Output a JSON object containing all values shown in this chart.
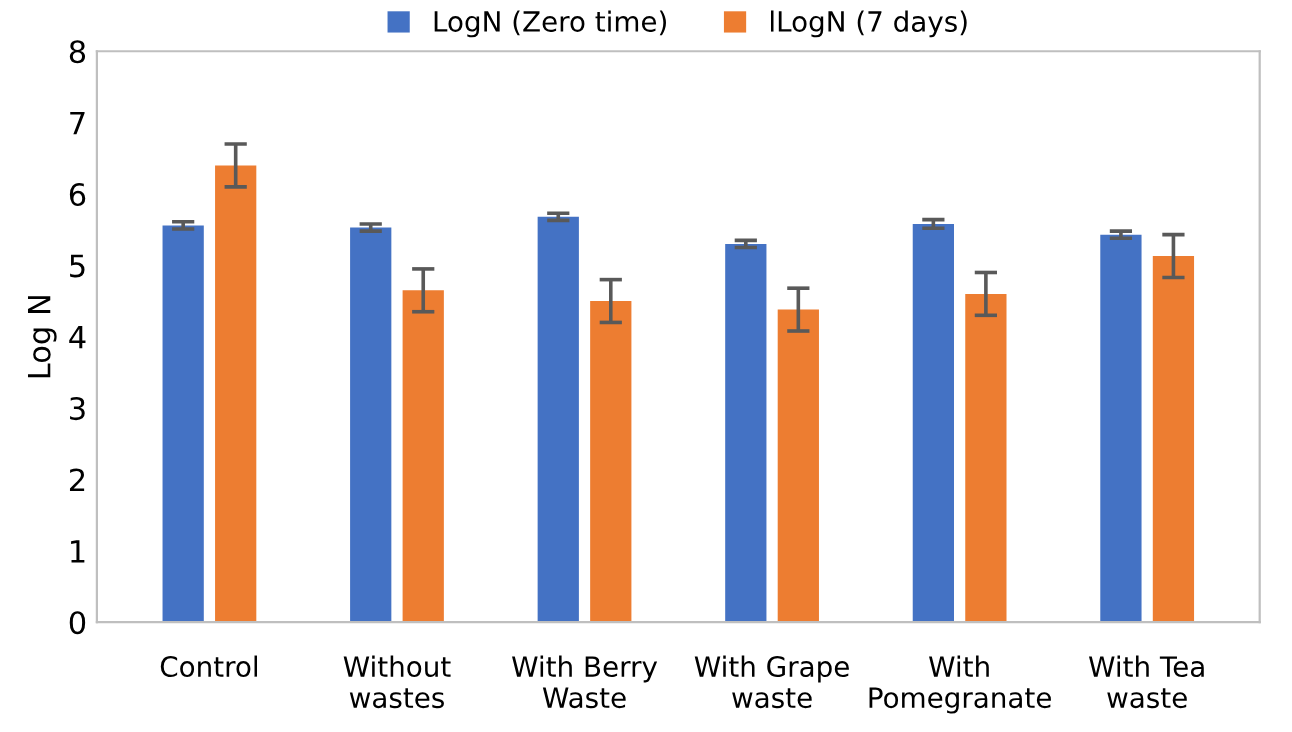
{
  "chart_data": {
    "type": "bar",
    "ylabel": "Log N",
    "categories": [
      "Control",
      "Without\nwastes",
      "With Berry\nWaste",
      "With Grape\nwaste",
      "With\nPomegranate",
      "With Tea\nwaste"
    ],
    "series": [
      {
        "name": "LogN (Zero time)",
        "color": "#4472c4",
        "values": [
          5.56,
          5.53,
          5.68,
          5.3,
          5.58,
          5.43
        ],
        "errors": [
          0.05,
          0.05,
          0.05,
          0.05,
          0.06,
          0.05
        ]
      },
      {
        "name": "lLogN (7 days)",
        "color": "#ed7d31",
        "values": [
          6.4,
          4.65,
          4.5,
          4.38,
          4.6,
          5.13
        ],
        "errors": [
          0.3,
          0.3,
          0.3,
          0.3,
          0.3,
          0.3
        ]
      }
    ],
    "ylim": [
      0,
      8
    ],
    "yticks": [
      0,
      1,
      2,
      3,
      4,
      5,
      6,
      7,
      8
    ],
    "grid": false,
    "legend": "top"
  }
}
